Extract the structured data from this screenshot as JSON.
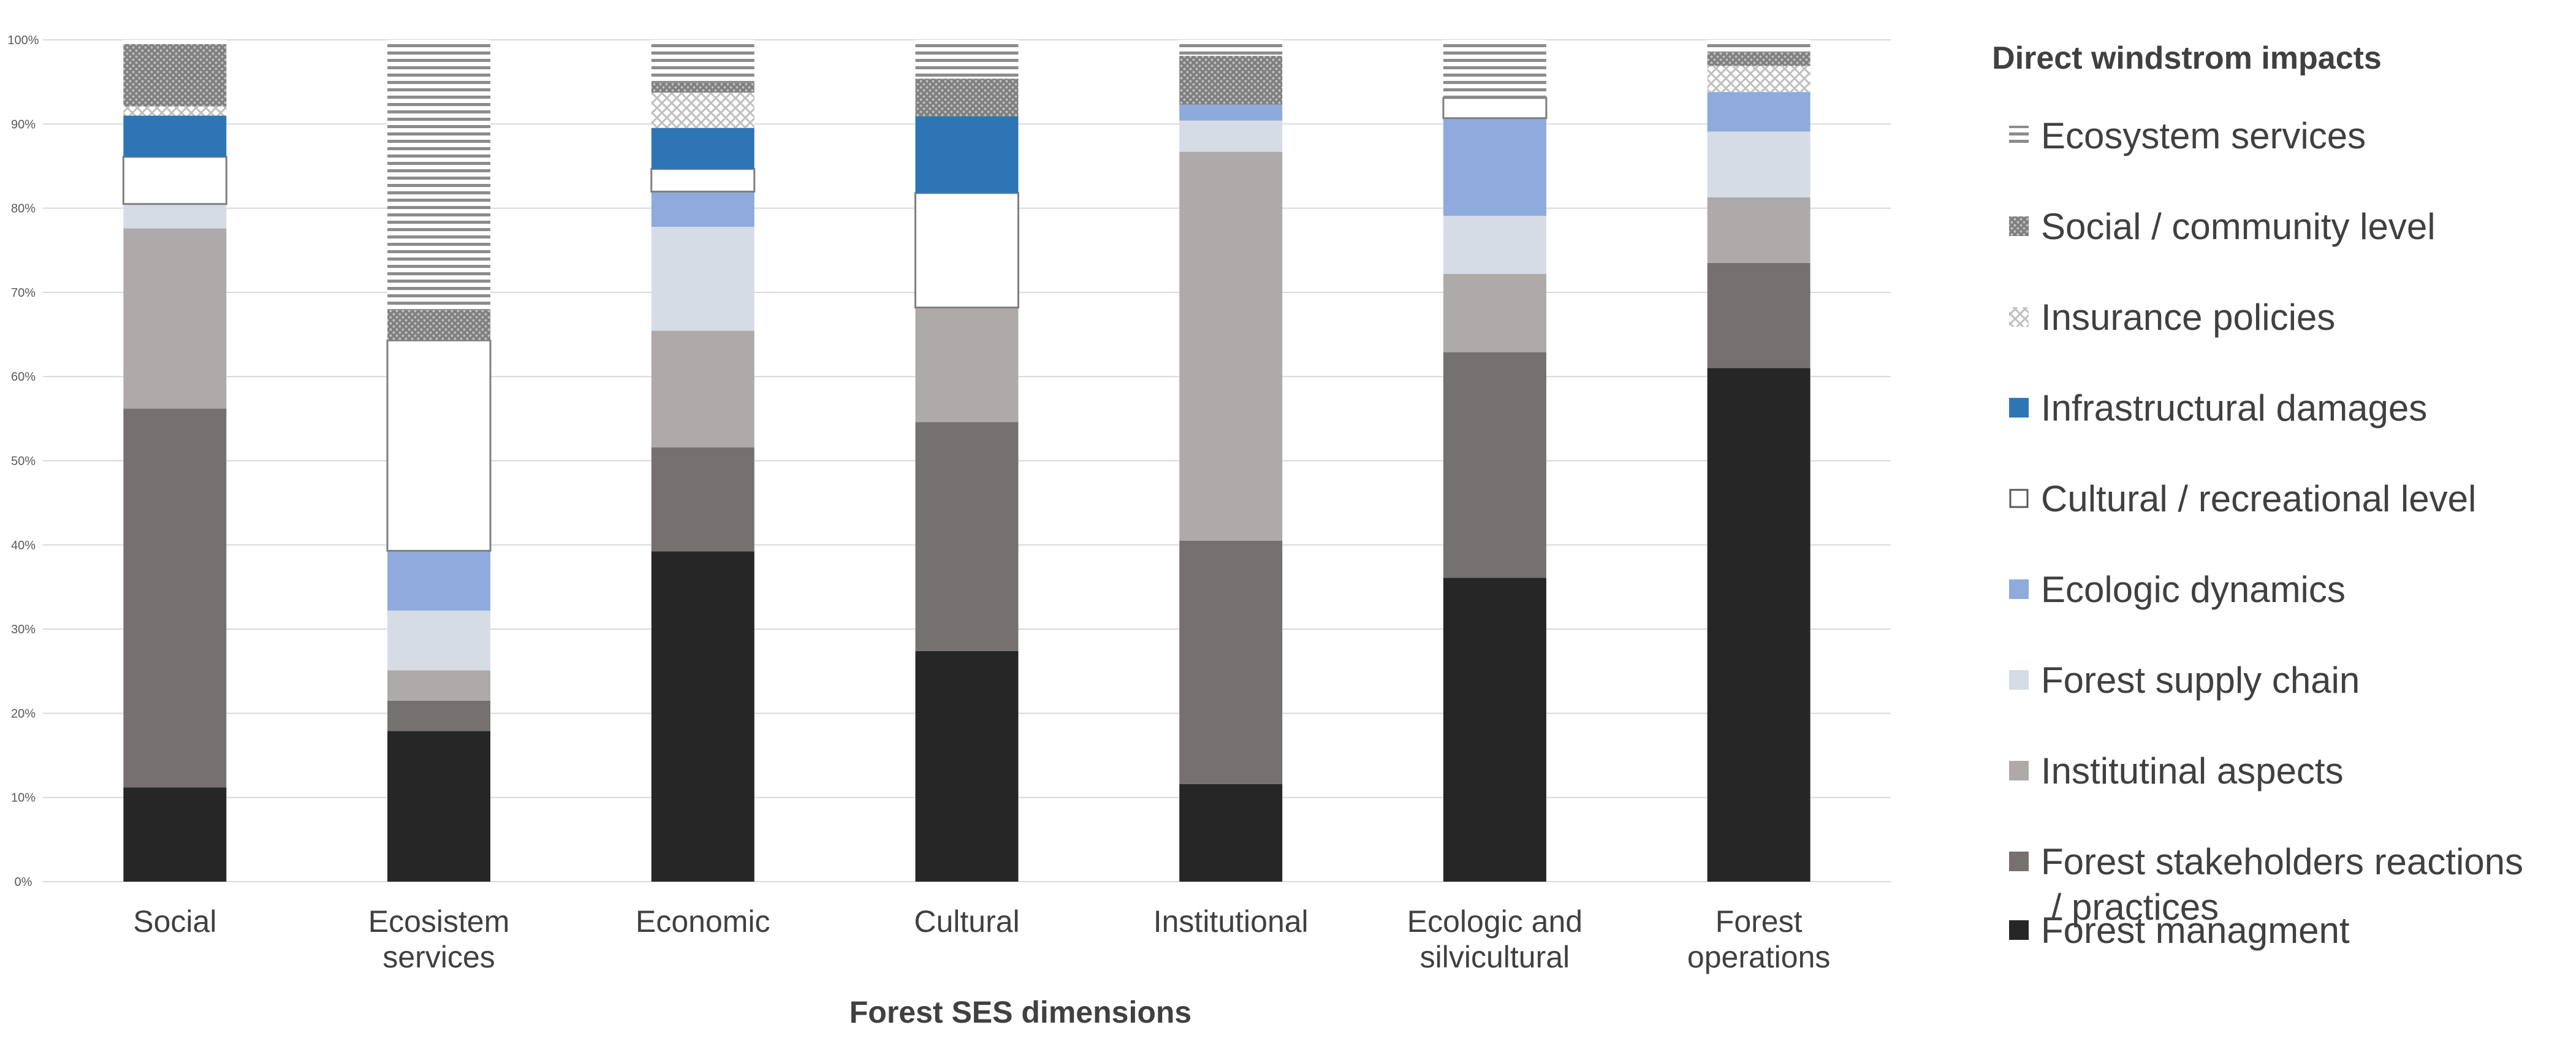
{
  "chart_data": {
    "type": "bar",
    "stacked": "percent",
    "xlabel": "Forest SES dimensions",
    "ylabel": "",
    "ylim": [
      0,
      100
    ],
    "y_ticks": [
      "0%",
      "10%",
      "20%",
      "30%",
      "40%",
      "50%",
      "60%",
      "70%",
      "80%",
      "90%",
      "100%"
    ],
    "grid": true,
    "legend_title": "Direct windstrom impacts",
    "legend_position": "right",
    "categories": [
      [
        "Social"
      ],
      [
        "Ecosistem",
        "services"
      ],
      [
        "Economic"
      ],
      [
        "Cultural"
      ],
      [
        "Institutional"
      ],
      [
        "Ecologic and",
        "silvicultural"
      ],
      [
        "Forest",
        "operations"
      ]
    ],
    "series": [
      {
        "name": "Forest managment",
        "legend_lines": [
          "Forest managment"
        ],
        "color": "#262626",
        "pattern": "solid",
        "values": [
          11.2,
          17.9,
          39.4,
          27.4,
          11.6,
          36.1,
          61.0
        ]
      },
      {
        "name": "Forest stakeholders reactions / practices",
        "legend_lines": [
          "Forest stakeholders reactions",
          " / practices"
        ],
        "color": "#767171",
        "pattern": "solid",
        "values": [
          45.0,
          3.6,
          12.4,
          27.2,
          28.9,
          26.8,
          12.5
        ]
      },
      {
        "name": "Institutinal aspects",
        "legend_lines": [
          "Institutinal aspects"
        ],
        "color": "#aeaaaa",
        "pattern": "solid",
        "values": [
          21.4,
          3.6,
          13.9,
          13.6,
          46.2,
          9.3,
          7.8
        ]
      },
      {
        "name": "Forest supply chain",
        "legend_lines": [
          "Forest supply chain"
        ],
        "color": "#d6dce5",
        "pattern": "solid",
        "values": [
          2.9,
          7.1,
          12.4,
          0.0,
          3.7,
          6.9,
          7.8
        ]
      },
      {
        "name": "Ecologic dynamics",
        "legend_lines": [
          "Ecologic dynamics"
        ],
        "color": "#8faadc",
        "pattern": "solid",
        "values": [
          0.0,
          7.1,
          4.2,
          0.0,
          1.9,
          11.6,
          4.7
        ]
      },
      {
        "name": "Cultural / recreational level",
        "legend_lines": [
          "Cultural / recreational level"
        ],
        "color": "#ffffff",
        "pattern": "outline",
        "values": [
          5.6,
          25.0,
          2.7,
          13.6,
          0.0,
          2.4,
          0.0
        ]
      },
      {
        "name": "Infrastructural damages",
        "legend_lines": [
          "Infrastructural damages"
        ],
        "color": "#2e75b6",
        "pattern": "solid",
        "values": [
          4.9,
          0.0,
          4.9,
          9.1,
          0.0,
          0.0,
          0.0
        ]
      },
      {
        "name": "Insurance policies",
        "legend_lines": [
          "Insurance policies"
        ],
        "color": "#bfbfbf",
        "pattern": "crosshatch",
        "values": [
          1.1,
          0.0,
          4.2,
          0.0,
          0.0,
          0.0,
          3.1
        ]
      },
      {
        "name": "Social / community level",
        "legend_lines": [
          "Social / community level"
        ],
        "color": "#7f7f7f",
        "pattern": "dots",
        "values": [
          7.4,
          3.6,
          1.2,
          4.5,
          5.8,
          0.0,
          1.6
        ]
      },
      {
        "name": "Ecosystem services",
        "legend_lines": [
          "Ecosystem services"
        ],
        "color": "#8c8c8c",
        "pattern": "hlines",
        "values": [
          0.5,
          32.1,
          5.1,
          4.6,
          1.9,
          6.9,
          1.5
        ]
      }
    ]
  }
}
